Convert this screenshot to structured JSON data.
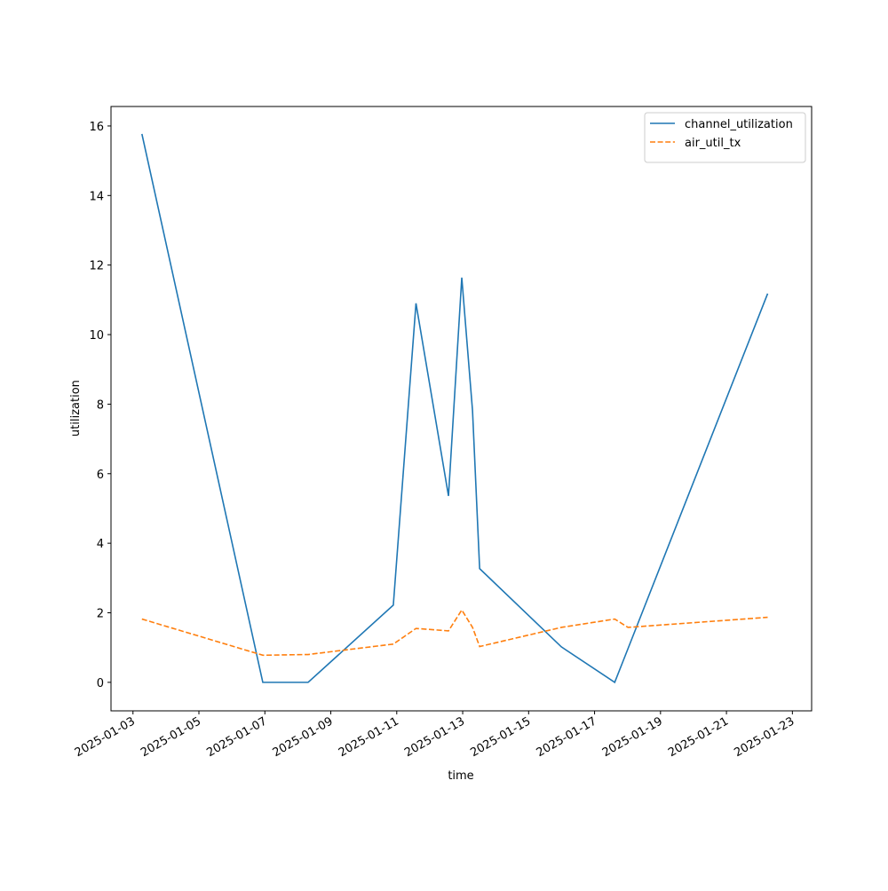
{
  "chart_data": {
    "type": "line",
    "x_label": "time",
    "y_label": "utilization",
    "x": [
      "2025-01-03T06:30",
      "2025-01-06T22:30",
      "2025-01-08T07:30",
      "2025-01-10T21:30",
      "2025-01-11T14:00",
      "2025-01-12T13:40",
      "2025-01-12T23:20",
      "2025-01-13T07:10",
      "2025-01-13T12:20",
      "2025-01-15T23:50",
      "2025-01-17T14:40",
      "2025-01-18T00:20",
      "2025-01-22T06:00"
    ],
    "series": [
      {
        "name": "channel_utilization",
        "color": "#1f77b4",
        "dash": "solid",
        "values": [
          15.77,
          0,
          0,
          2.22,
          10.9,
          5.36,
          11.64,
          7.81,
          3.27,
          1.02,
          0,
          0.97,
          11.18
        ]
      },
      {
        "name": "air_util_tx",
        "color": "#ff7f0e",
        "dash": "dashed",
        "values": [
          1.82,
          0.78,
          0.8,
          1.1,
          1.55,
          1.48,
          2.08,
          1.58,
          1.03,
          1.58,
          1.82,
          1.58,
          1.87
        ]
      }
    ],
    "xlim": [
      "2025-01-02T08:00",
      "2025-01-23T14:00"
    ],
    "xticks": [
      "2025-01-03",
      "2025-01-05",
      "2025-01-07",
      "2025-01-09",
      "2025-01-11",
      "2025-01-13",
      "2025-01-15",
      "2025-01-17",
      "2025-01-19",
      "2025-01-21",
      "2025-01-23"
    ],
    "ylim": [
      -0.82,
      16.56
    ],
    "yticks": [
      0,
      2,
      4,
      6,
      8,
      10,
      12,
      14,
      16
    ],
    "grid": false,
    "legend": "upper right"
  }
}
